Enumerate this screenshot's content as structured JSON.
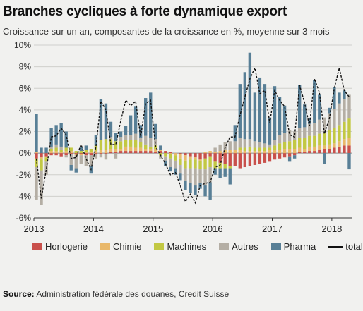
{
  "title": "Branches cycliques à forte dynamique export",
  "subtitle": "Croissance sur un an, composantes de la croissance en %, moyenne sur 3 mois",
  "source_label": "Source:",
  "source_text": "Administration fédérale des douanes, Credit Suisse",
  "chart_data": {
    "type": "bar",
    "stacked": true,
    "ylim": [
      -6,
      10
    ],
    "y_ticks": [
      "10%",
      "8%",
      "6%",
      "4%",
      "2%",
      "0%",
      "-2%",
      "-4%",
      "-6%"
    ],
    "x_ticks": [
      "2013",
      "2014",
      "2015",
      "2016",
      "2017",
      "2018"
    ],
    "x_start": "2013-01",
    "x_end": "2018-02",
    "grid": true,
    "legend_position": "bottom",
    "series": [
      {
        "name": "Horlogerie",
        "color": "#c9504b",
        "values": [
          -0.5,
          -0.4,
          -0.3,
          -0.2,
          -0.2,
          -0.3,
          -0.2,
          -0.1,
          -0.1,
          -0.1,
          -0.2,
          -0.2,
          -0.1,
          -0.1,
          -0.1,
          0.1,
          0.1,
          0.2,
          0.2,
          0.2,
          0.2,
          0.2,
          0.2,
          0.2,
          0.1,
          0.2,
          0.2,
          0.1,
          0.0,
          -0.1,
          -0.2,
          -0.3,
          -0.4,
          -0.6,
          -0.5,
          -0.3,
          -0.8,
          -0.9,
          -1.0,
          -1.2,
          -1.2,
          -1.4,
          -1.3,
          -1.2,
          -1.1,
          -1.0,
          -0.9,
          -0.8,
          -0.6,
          -0.5,
          -0.4,
          -0.3,
          -0.2,
          0.1,
          0.1,
          0.2,
          0.2,
          0.3,
          0.4,
          0.4,
          0.5,
          0.6,
          0.7,
          0.7
        ]
      },
      {
        "name": "Chimie",
        "color": "#e9b86a",
        "values": [
          0.1,
          -0.2,
          -0.1,
          0.2,
          0.2,
          0.1,
          0.2,
          0.2,
          -0.1,
          -0.1,
          0.1,
          0.1,
          0.2,
          0.3,
          0.3,
          0.3,
          0.3,
          0.2,
          0.4,
          0.4,
          0.3,
          0.3,
          0.2,
          0.2,
          0.3,
          0.1,
          0.0,
          -0.1,
          -0.2,
          -0.4,
          -0.5,
          -0.3,
          -0.2,
          -0.1,
          0.1,
          0.2,
          0.1,
          0.2,
          0.3,
          0.3,
          0.3,
          0.3,
          0.2,
          0.2,
          0.2,
          0.2,
          0.2,
          0.3,
          0.3,
          0.3,
          0.4,
          0.4,
          0.4,
          0.4,
          0.3,
          0.4,
          0.4,
          0.4,
          0.3,
          0.4,
          0.4,
          0.5,
          0.6,
          0.7
        ]
      },
      {
        "name": "Machines",
        "color": "#c2c843",
        "values": [
          -0.8,
          -1.0,
          -0.4,
          0.2,
          0.3,
          0.2,
          0.3,
          0.3,
          0.2,
          0.2,
          0.2,
          0.3,
          0.5,
          0.9,
          1.0,
          0.9,
          0.7,
          0.7,
          0.6,
          0.6,
          0.7,
          0.5,
          0.4,
          0.2,
          0.3,
          -0.2,
          -0.3,
          -0.4,
          -0.5,
          -0.6,
          -0.7,
          -0.8,
          -0.8,
          -0.8,
          -1.0,
          -1.0,
          -0.6,
          -0.5,
          -0.4,
          -0.2,
          0.0,
          0.2,
          0.3,
          0.4,
          0.3,
          0.3,
          0.3,
          0.2,
          0.4,
          0.6,
          0.6,
          0.7,
          0.8,
          0.9,
          1.0,
          1.0,
          1.0,
          1.1,
          1.2,
          1.3,
          1.4,
          1.5,
          1.6,
          1.8
        ]
      },
      {
        "name": "Autres",
        "color": "#b4aea4",
        "values": [
          -3.0,
          -3.2,
          -1.2,
          0.2,
          0.3,
          0.3,
          -0.2,
          -1.0,
          -1.2,
          -0.8,
          -1.0,
          -1.0,
          -0.4,
          -0.3,
          -0.5,
          0.2,
          -0.5,
          0.4,
          0.5,
          0.5,
          0.6,
          0.4,
          0.8,
          0.8,
          0.6,
          -0.3,
          -0.4,
          -0.8,
          -0.7,
          -0.8,
          -1.2,
          -1.4,
          -1.6,
          -1.3,
          -1.5,
          -1.4,
          0.4,
          0.6,
          0.7,
          0.8,
          0.8,
          0.9,
          0.8,
          0.7,
          0.6,
          0.5,
          0.4,
          0.3,
          0.5,
          0.8,
          0.9,
          1.0,
          0.8,
          0.9,
          1.0,
          1.1,
          1.2,
          1.3,
          1.4,
          1.6,
          1.8,
          2.0,
          2.1,
          2.2
        ]
      },
      {
        "name": "Pharma",
        "color": "#587f96",
        "values": [
          3.5,
          0.5,
          0.5,
          1.7,
          1.8,
          2.2,
          1.5,
          -0.5,
          -0.4,
          0.4,
          0.4,
          -0.7,
          1.0,
          3.8,
          3.3,
          1.4,
          0.8,
          0.5,
          0.8,
          1.8,
          2.5,
          1.2,
          3.5,
          4.2,
          1.4,
          0.4,
          -0.5,
          -0.4,
          -0.6,
          -0.6,
          -0.8,
          -0.9,
          -0.9,
          -0.5,
          -1.0,
          -1.6,
          -0.6,
          -0.9,
          -0.8,
          -1.5,
          1.5,
          5.0,
          6.2,
          8.0,
          4.5,
          6.0,
          5.5,
          2.5,
          5.0,
          3.5,
          2.5,
          -0.5,
          -0.3,
          4.0,
          2.1,
          0.5,
          4.0,
          2.3,
          -1.0,
          0.5,
          2.0,
          1.0,
          0.8,
          -1.5
        ]
      }
    ],
    "total": {
      "name": "total",
      "color": "#111111",
      "values": [
        -0.5,
        -4.2,
        -1.5,
        1.5,
        1.6,
        2.3,
        1.7,
        -0.5,
        -0.4,
        0.8,
        -0.5,
        -1.5,
        0.6,
        4.8,
        4.0,
        0.8,
        0.8,
        3.0,
        4.9,
        4.4,
        4.8,
        1.5,
        4.6,
        4.9,
        0.6,
        -0.2,
        -1.0,
        -2.0,
        -1.8,
        -3.0,
        -4.5,
        -3.8,
        -4.6,
        -3.0,
        -2.8,
        -2.7,
        -1.3,
        -1.1,
        0.5,
        1.5,
        1.5,
        3.5,
        5.2,
        6.9,
        7.9,
        5.5,
        5.8,
        2.8,
        5.8,
        4.9,
        4.3,
        1.7,
        1.5,
        6.3,
        4.7,
        2.5,
        6.9,
        5.6,
        1.8,
        3.2,
        6.0,
        7.9,
        5.8,
        5.2
      ]
    }
  }
}
